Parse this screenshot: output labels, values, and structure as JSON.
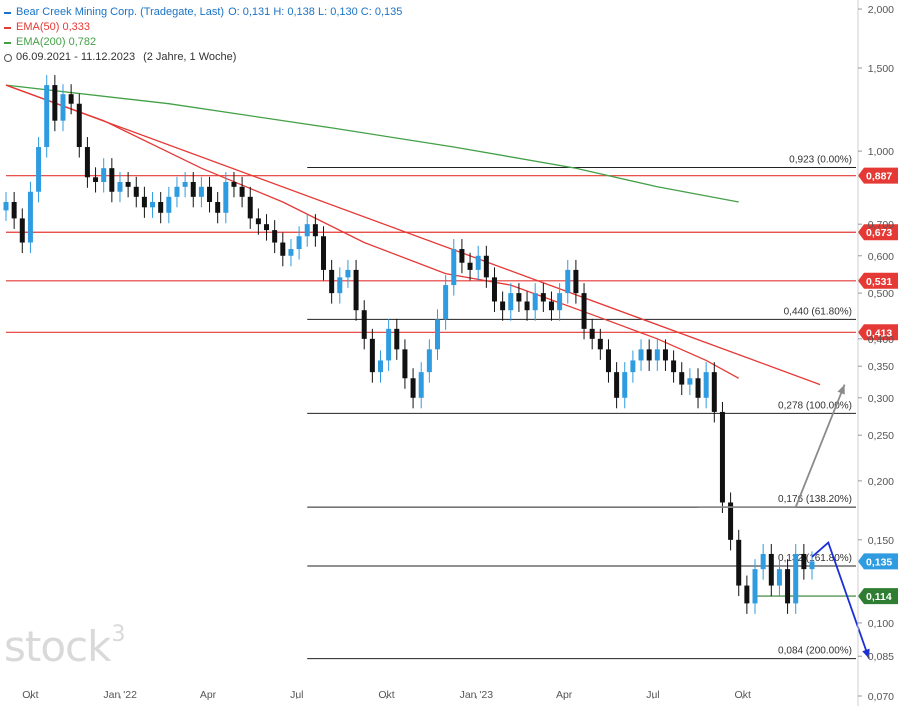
{
  "legend": {
    "title": "Bear Creek Mining Corp. (Tradegate, Last)",
    "ohlc": "O: 0,131  H: 0,138  L: 0,130  C: 0,135",
    "ema50": {
      "label": "EMA(50)",
      "value": "0,333",
      "color": "#e53935"
    },
    "ema200": {
      "label": "EMA(200)",
      "value": "0,782",
      "color": "#43a047"
    },
    "range": "06.09.2021 - 11.12.2023",
    "period": "(2 Jahre, 1 Woche)"
  },
  "watermark": {
    "text": "stock",
    "sup": "3"
  },
  "chart_data": {
    "type": "candlestick",
    "y_scale": "log",
    "ylim": [
      0.07,
      2.05
    ],
    "x_range": [
      "2021-09-06",
      "2023-12-11"
    ],
    "x_ticks": [
      {
        "label": "Okt",
        "date": "2021-10-01"
      },
      {
        "label": "Jan '22",
        "date": "2022-01-01"
      },
      {
        "label": "Apr",
        "date": "2022-04-01"
      },
      {
        "label": "Jul",
        "date": "2022-07-01"
      },
      {
        "label": "Okt",
        "date": "2022-10-01"
      },
      {
        "label": "Jan '23",
        "date": "2023-01-01"
      },
      {
        "label": "Apr",
        "date": "2023-04-01"
      },
      {
        "label": "Jul",
        "date": "2023-07-01"
      },
      {
        "label": "Okt",
        "date": "2023-10-01"
      }
    ],
    "y_ticks": [
      {
        "value": 2.0,
        "label": "2,000"
      },
      {
        "value": 1.5,
        "label": "1,500"
      },
      {
        "value": 1.0,
        "label": "1,000"
      },
      {
        "value": 0.7,
        "label": "0,700"
      },
      {
        "value": 0.6,
        "label": "0,600"
      },
      {
        "value": 0.5,
        "label": "0,500"
      },
      {
        "value": 0.4,
        "label": "0,400"
      },
      {
        "value": 0.35,
        "label": "0,350"
      },
      {
        "value": 0.3,
        "label": "0,300"
      },
      {
        "value": 0.25,
        "label": "0,250"
      },
      {
        "value": 0.2,
        "label": "0,200"
      },
      {
        "value": 0.15,
        "label": "0,150"
      },
      {
        "value": 0.1,
        "label": "0,100"
      },
      {
        "value": 0.085,
        "label": "0,085"
      },
      {
        "value": 0.07,
        "label": "0,070"
      }
    ],
    "colors": {
      "up": "#2f9be0",
      "down": "#111111",
      "ema50": "#e53935",
      "ema200": "#43a047",
      "resistance": "#e53935",
      "support": "#2e7d32",
      "current": "#2f9be0",
      "projection_up": "#8a8a8a",
      "projection_down": "#1c2fd6"
    },
    "closes": [
      0.78,
      0.72,
      0.64,
      0.82,
      1.02,
      1.38,
      1.16,
      1.32,
      1.26,
      1.02,
      0.88,
      0.86,
      0.92,
      0.82,
      0.86,
      0.84,
      0.8,
      0.76,
      0.78,
      0.74,
      0.8,
      0.84,
      0.86,
      0.8,
      0.84,
      0.78,
      0.74,
      0.86,
      0.84,
      0.8,
      0.72,
      0.7,
      0.68,
      0.64,
      0.6,
      0.62,
      0.66,
      0.7,
      0.66,
      0.56,
      0.5,
      0.54,
      0.56,
      0.46,
      0.4,
      0.34,
      0.36,
      0.42,
      0.38,
      0.33,
      0.3,
      0.34,
      0.38,
      0.44,
      0.52,
      0.62,
      0.58,
      0.56,
      0.6,
      0.54,
      0.48,
      0.46,
      0.5,
      0.48,
      0.46,
      0.5,
      0.48,
      0.46,
      0.5,
      0.56,
      0.5,
      0.42,
      0.4,
      0.38,
      0.34,
      0.3,
      0.34,
      0.36,
      0.38,
      0.36,
      0.38,
      0.36,
      0.34,
      0.32,
      0.33,
      0.3,
      0.34,
      0.28,
      0.18,
      0.15,
      0.12,
      0.11,
      0.13,
      0.14,
      0.12,
      0.13,
      0.11,
      0.14,
      0.13,
      0.135
    ],
    "ema50": [
      [
        0,
        1.38
      ],
      [
        12,
        1.16
      ],
      [
        24,
        0.92
      ],
      [
        34,
        0.78
      ],
      [
        44,
        0.64
      ],
      [
        54,
        0.55
      ],
      [
        62,
        0.52
      ],
      [
        72,
        0.45
      ],
      [
        80,
        0.4
      ],
      [
        86,
        0.36
      ],
      [
        90,
        0.33
      ]
    ],
    "ema200": [
      [
        0,
        1.38
      ],
      [
        20,
        1.26
      ],
      [
        40,
        1.12
      ],
      [
        55,
        1.02
      ],
      [
        70,
        0.92
      ],
      [
        80,
        0.84
      ],
      [
        90,
        0.78
      ]
    ],
    "trendline": [
      [
        0,
        1.38
      ],
      [
        100,
        0.32
      ]
    ],
    "horizontal_levels": [
      {
        "value": 0.887,
        "label": "0,887",
        "kind": "resistance",
        "from": 0
      },
      {
        "value": 0.673,
        "label": "0,673",
        "kind": "resistance",
        "from": 0
      },
      {
        "value": 0.531,
        "label": "0,531",
        "kind": "resistance",
        "from": 0
      },
      {
        "value": 0.413,
        "label": "0,413",
        "kind": "resistance",
        "from": 0
      },
      {
        "value": 0.114,
        "label": "0,114",
        "kind": "support",
        "from": 92
      },
      {
        "value": 0.135,
        "label": "0,135",
        "kind": "current",
        "from": 100
      }
    ],
    "fib_levels": [
      {
        "value": 0.923,
        "label": "0,923 (0.00%)"
      },
      {
        "value": 0.44,
        "label": "0,440 (61.80%)"
      },
      {
        "value": 0.278,
        "label": "0,278 (100.00%)"
      },
      {
        "value": 0.176,
        "label": "0,176 (138.20%)"
      },
      {
        "value": 0.132,
        "label": "0,132 (161.80%)"
      },
      {
        "value": 0.084,
        "label": "0,084 (200.00%)"
      }
    ],
    "projection_up": [
      [
        85,
        0.176
      ],
      [
        97,
        0.176
      ],
      [
        103,
        0.32
      ]
    ],
    "projection_down": [
      [
        99,
        0.138
      ],
      [
        101,
        0.148
      ],
      [
        106,
        0.084
      ]
    ]
  }
}
